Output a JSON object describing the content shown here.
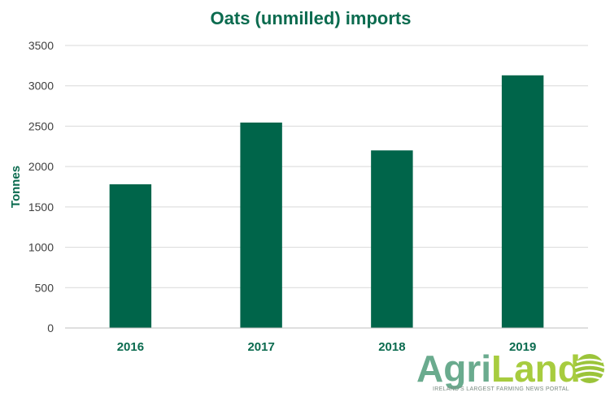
{
  "colors": {
    "bar": "#00654a",
    "title": "#0b6b4f",
    "grid": "#d9d9d9",
    "logo_agri": "#6aab8e",
    "logo_land": "#a7cc3f"
  },
  "chart_data": {
    "type": "bar",
    "title": "Oats (unmilled) imports",
    "xlabel": "",
    "ylabel": "Tonnes",
    "categories": [
      "2016",
      "2017",
      "2018",
      "2019"
    ],
    "values": [
      1780,
      2545,
      2200,
      3130
    ],
    "ylim": [
      0,
      3500
    ],
    "yticks": [
      0,
      500,
      1000,
      1500,
      2000,
      2500,
      3000,
      3500
    ],
    "grid": true,
    "legend": "none"
  },
  "logo": {
    "part1": "Agri",
    "part2": "Land",
    "tagline": "IRELAND'S LARGEST FARMING NEWS PORTAL",
    "icon": "field-rows-icon"
  }
}
